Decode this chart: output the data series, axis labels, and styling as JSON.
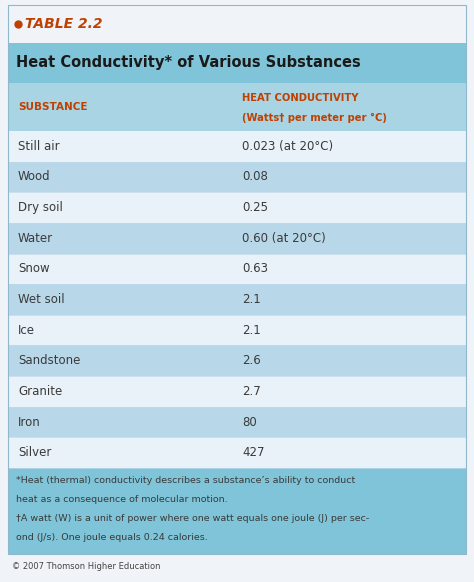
{
  "table_label": "TABLE 2.2",
  "title": "Heat Conductivity* of Various Substances",
  "col1_header": "SUBSTANCE",
  "col2_header_line1": "HEAT CONDUCTIVITY",
  "col2_header_line2": "(Watts† per meter per °C)",
  "rows": [
    [
      "Still air",
      "0.023 (at 20°C)"
    ],
    [
      "Wood",
      "0.08"
    ],
    [
      "Dry soil",
      "0.25"
    ],
    [
      "Water",
      "0.60 (at 20°C)"
    ],
    [
      "Snow",
      "0.63"
    ],
    [
      "Wet soil",
      "2.1"
    ],
    [
      "Ice",
      "2.1"
    ],
    [
      "Sandstone",
      "2.6"
    ],
    [
      "Granite",
      "2.7"
    ],
    [
      "Iron",
      "80"
    ],
    [
      "Silver",
      "427"
    ]
  ],
  "footnote_lines": [
    "*Heat (thermal) conductivity describes a substance’s ability to conduct",
    "heat as a consequence of molecular motion.",
    "†A watt (W) is a unit of power where one watt equals one joule (J) per sec-",
    "ond (J/s). One joule equals 0.24 calories."
  ],
  "copyright": "© 2007 Thomson Higher Education",
  "outer_bg": "#f0f4f8",
  "label_area_bg": "#f0f4f8",
  "title_bg": "#7fc4d8",
  "header_bg": "#a8d4e4",
  "row_light": "#e8f2f8",
  "row_medium": "#b8d8ea",
  "footnote_bg": "#7fc4d8",
  "header_text_color": "#c04000",
  "data_text_color": "#3a3a3a",
  "table_label_color": "#c04000",
  "bullet_color": "#c04000",
  "title_text_color": "#1a1a1a",
  "copyright_color": "#444444"
}
